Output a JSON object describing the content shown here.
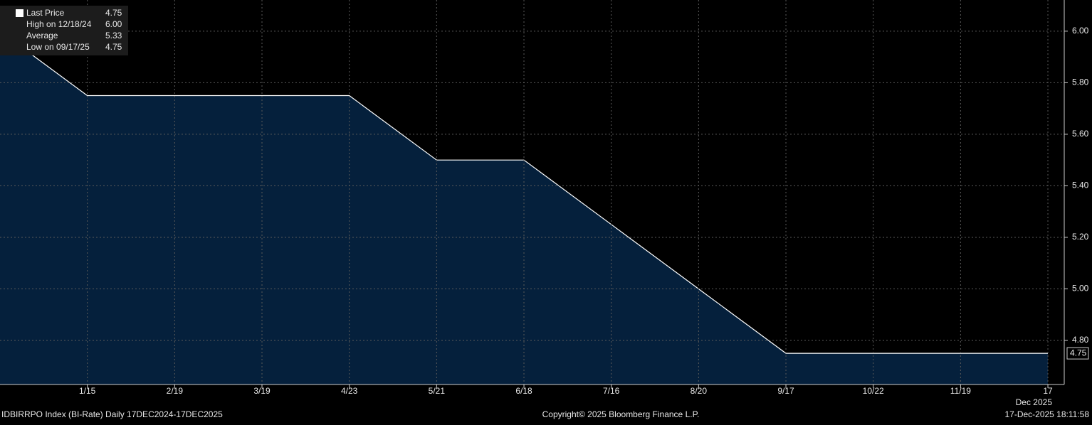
{
  "chart_data": {
    "type": "area",
    "categories": [
      null,
      "1/15",
      "2/19",
      "3/19",
      "4/23",
      "5/21",
      "6/18",
      "7/16",
      "8/20",
      "9/17",
      "10/22",
      "11/19",
      "17"
    ],
    "x_period_label": "Dec 2025",
    "series": [
      {
        "name": "Last Price",
        "color": "#ffffff",
        "fill": "#05203c",
        "values": [
          6.0,
          5.75,
          5.75,
          5.75,
          5.75,
          5.5,
          5.5,
          5.25,
          5.0,
          4.75,
          4.75,
          4.75,
          4.75
        ]
      }
    ],
    "ylim": [
      4.629,
      6.121
    ],
    "yticks": [
      {
        "value": 4.8,
        "label": "4.80"
      },
      {
        "value": 5.0,
        "label": "5.00"
      },
      {
        "value": 5.2,
        "label": "5.20"
      },
      {
        "value": 5.4,
        "label": "5.40"
      },
      {
        "value": 5.6,
        "label": "5.60"
      },
      {
        "value": 5.8,
        "label": "5.80"
      },
      {
        "value": 6.0,
        "label": "6.00"
      }
    ],
    "grid": true,
    "legend_position": "upper left",
    "legend": [
      {
        "label": "Last Price",
        "value": "4.75"
      },
      {
        "label": "High on 12/18/24",
        "value": "6.00"
      },
      {
        "label": "Average",
        "value": "5.33"
      },
      {
        "label": "Low on 09/17/25",
        "value": "4.75"
      }
    ],
    "footer": {
      "left": "IDBIRRPO Index (BI-Rate) Daily 17DEC2024-17DEC2025",
      "center": "Copyright© 2025 Bloomberg Finance L.P.",
      "right": "17-Dec-2025 18:11:58"
    }
  }
}
